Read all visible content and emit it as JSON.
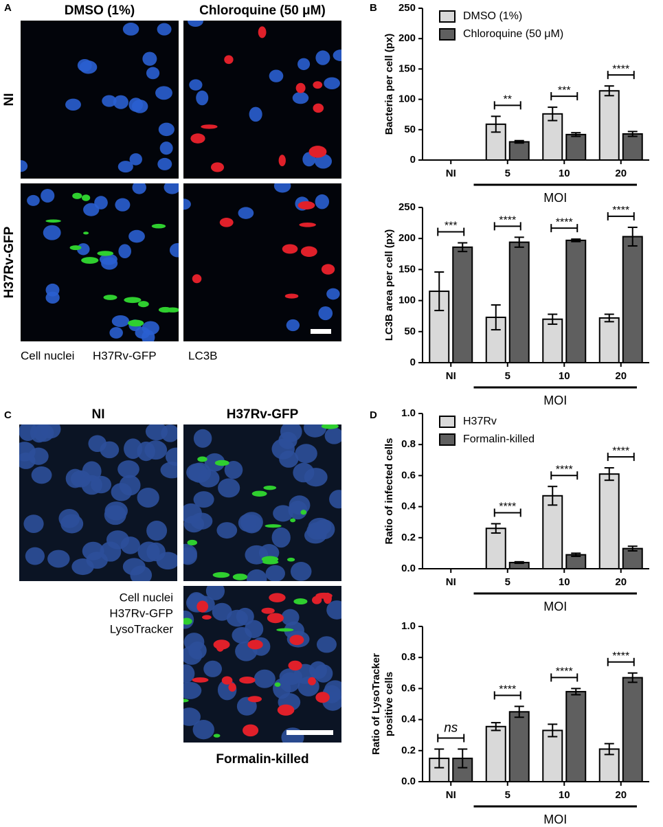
{
  "panel_a": {
    "letter": "A",
    "columns": [
      "DMSO (1%)",
      "Chloroquine (50 μM)"
    ],
    "rows": [
      "NI",
      "H37Rv-GFP"
    ],
    "legend": [
      {
        "text": "Cell nuclei",
        "color": "#1f2fd6"
      },
      {
        "text": "H37Rv-GFP",
        "color": "#2a9a2a"
      },
      {
        "text": "LC3B",
        "color": "#e02020"
      }
    ]
  },
  "panel_c": {
    "letter": "C",
    "columns": [
      "NI",
      "H37Rv-GFP"
    ],
    "bottom_label": "Formalin-killed",
    "legend": [
      {
        "text": "Cell nuclei",
        "color": "#1f2fd6"
      },
      {
        "text": "H37Rv-GFP",
        "color": "#2a9a2a"
      },
      {
        "text": "LysoTracker",
        "color": "#e02020"
      }
    ]
  },
  "chart_letters": [
    "B",
    "D"
  ],
  "chart_data": [
    {
      "type": "bar",
      "ylabel": [
        "Bacteria per cell (px)"
      ],
      "xlabel": "MOI",
      "categories": [
        "NI",
        "5",
        "10",
        "20"
      ],
      "ylim": [
        0,
        250
      ],
      "yticks": [
        0,
        50,
        100,
        150,
        200,
        250
      ],
      "legend": "upper left",
      "series": [
        {
          "name": "DMSO (1%)",
          "color": "#d9d9d9",
          "values": [
            null,
            59,
            76,
            114
          ],
          "errors": [
            null,
            13,
            11,
            8
          ]
        },
        {
          "name": "Chloroquine (50 μM)",
          "color": "#5f5f5f",
          "values": [
            null,
            30,
            42,
            43
          ],
          "errors": [
            null,
            2,
            3,
            4
          ]
        }
      ],
      "significance": [
        null,
        "**",
        "***",
        "****"
      ]
    },
    {
      "type": "bar",
      "ylabel": [
        "LC3B area per cell (px)"
      ],
      "xlabel": "MOI",
      "categories": [
        "NI",
        "5",
        "10",
        "20"
      ],
      "ylim": [
        0,
        250
      ],
      "yticks": [
        0,
        50,
        100,
        150,
        200,
        250
      ],
      "series": [
        {
          "color": "#d9d9d9",
          "values": [
            115,
            73,
            70,
            72
          ],
          "errors": [
            31,
            20,
            8,
            6
          ]
        },
        {
          "color": "#5f5f5f",
          "values": [
            186,
            194,
            197,
            203
          ],
          "errors": [
            7,
            8,
            2,
            15
          ]
        }
      ],
      "significance": [
        "***",
        "****",
        "****",
        "****"
      ]
    },
    {
      "type": "bar",
      "ylabel": [
        "Ratio of infected cells"
      ],
      "xlabel": "MOI",
      "categories": [
        "NI",
        "5",
        "10",
        "20"
      ],
      "ylim": [
        0,
        1
      ],
      "yticks": [
        {
          "value": 0,
          "label": "0.0"
        },
        0.2,
        0.4,
        0.6,
        0.8,
        {
          "value": 1,
          "label": "1.0"
        }
      ],
      "legend": "upper left",
      "series": [
        {
          "name": "H37Rv",
          "color": "#d9d9d9",
          "values": [
            null,
            0.26,
            0.47,
            0.61
          ],
          "errors": [
            null,
            0.03,
            0.06,
            0.04
          ]
        },
        {
          "name": "Formalin-killed",
          "color": "#5f5f5f",
          "values": [
            null,
            0.04,
            0.09,
            0.13
          ],
          "errors": [
            null,
            0.005,
            0.01,
            0.015
          ]
        }
      ],
      "significance": [
        null,
        "****",
        "****",
        "****"
      ]
    },
    {
      "type": "bar",
      "ylabel": [
        "Ratio of LysoTracker",
        "positive cells"
      ],
      "xlabel": "MOI",
      "categories": [
        "NI",
        "5",
        "10",
        "20"
      ],
      "ylim": [
        0,
        1
      ],
      "yticks": [
        {
          "value": 0,
          "label": "0.0"
        },
        0.2,
        0.4,
        0.6,
        0.8,
        {
          "value": 1,
          "label": "1.0"
        }
      ],
      "series": [
        {
          "color": "#d9d9d9",
          "values": [
            0.15,
            0.355,
            0.33,
            0.21
          ],
          "errors": [
            0.06,
            0.025,
            0.04,
            0.035
          ]
        },
        {
          "color": "#5f5f5f",
          "values": [
            0.15,
            0.45,
            0.58,
            0.67
          ],
          "errors": [
            0.06,
            0.035,
            0.02,
            0.03
          ]
        }
      ],
      "significance": [
        "ns",
        "****",
        "****",
        "****"
      ]
    }
  ]
}
